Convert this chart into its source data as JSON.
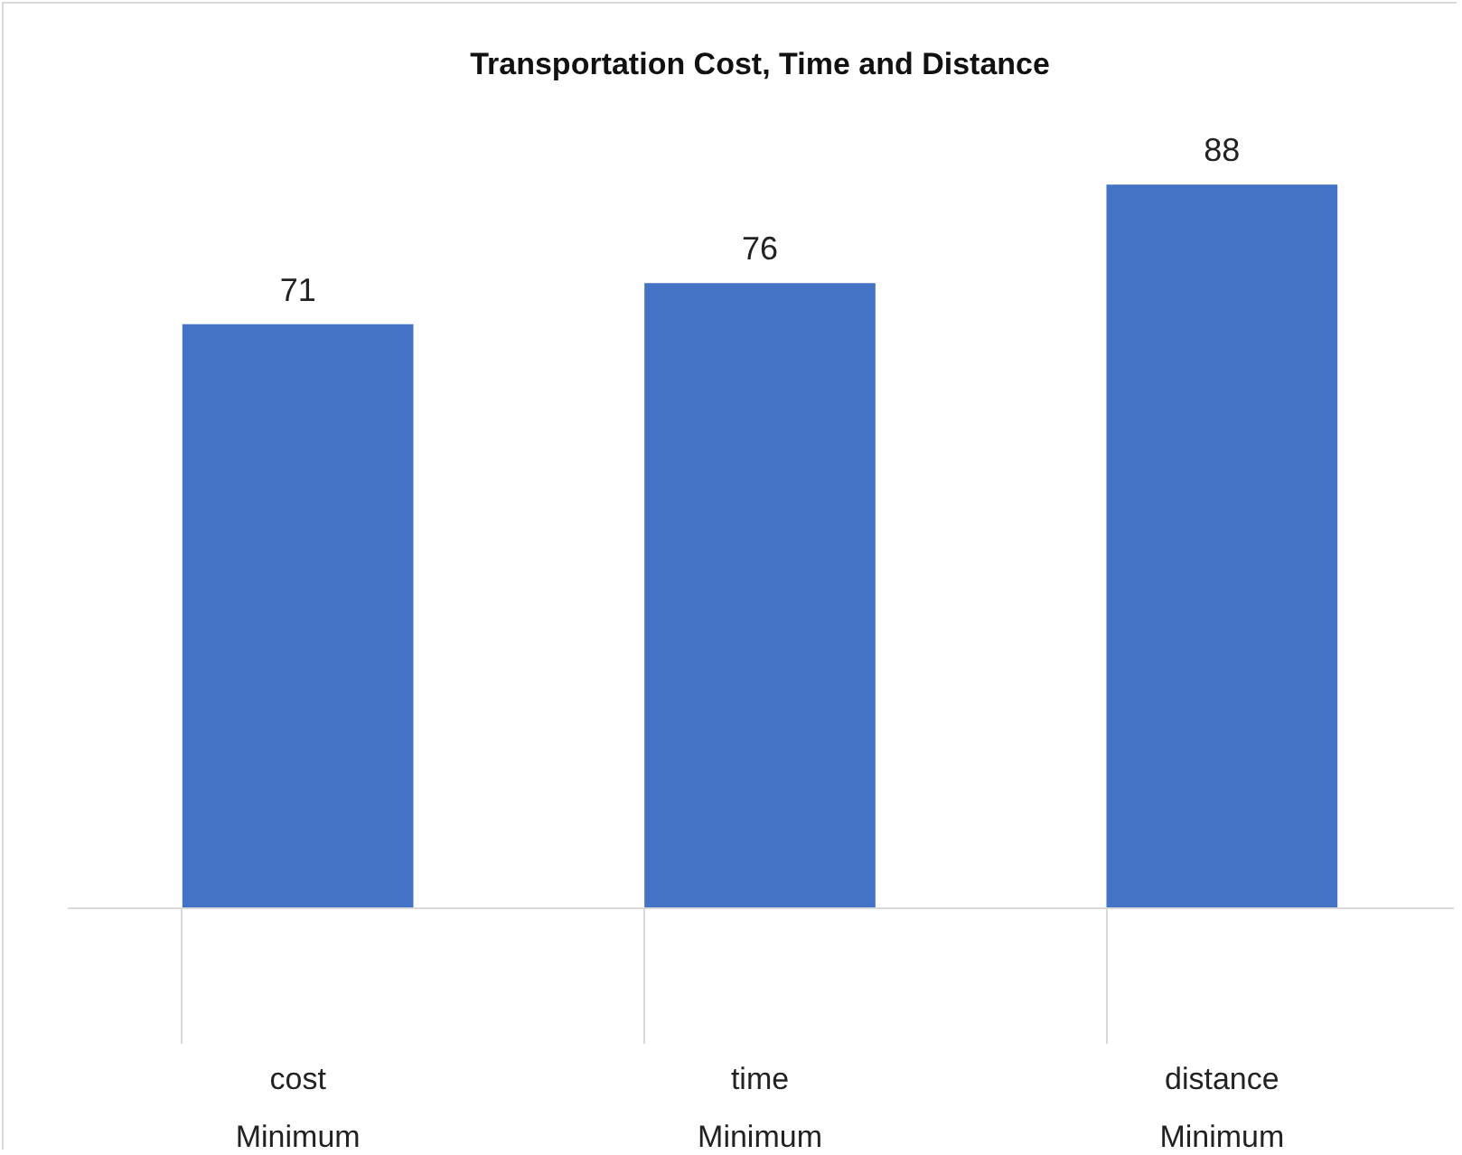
{
  "chart_data": {
    "type": "bar",
    "title": "Transportation Cost, Time and Distance",
    "categories": [
      "cost\nMinimum",
      "time\nMinimum",
      "distance\nMinimum"
    ],
    "values": [
      71,
      76,
      88
    ],
    "color": "#4472c4",
    "data_labels": true
  }
}
